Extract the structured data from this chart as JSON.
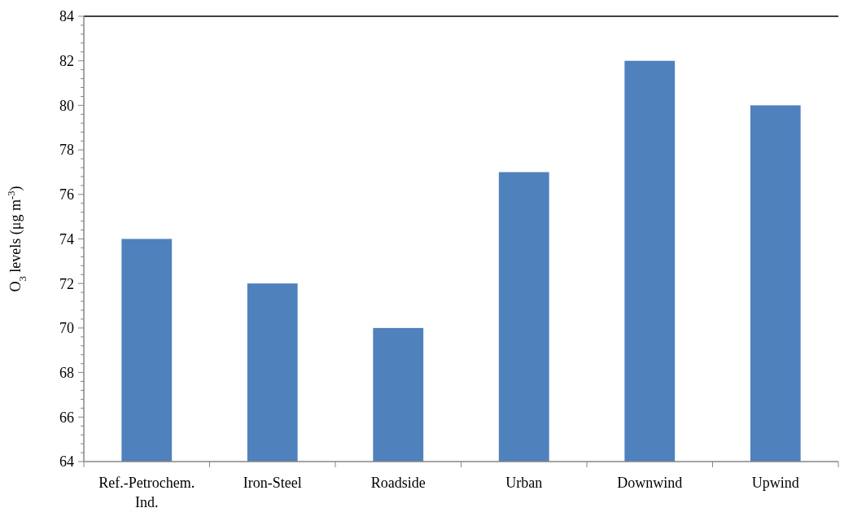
{
  "chart_data": {
    "type": "bar",
    "ylabel": "O$_{3}$ levels  (μg m$^{-3}$)",
    "categories": [
      "Ref.-Petrochem. Ind.",
      "Iron-Steel",
      "Roadside",
      "Urban",
      "Downwind",
      "Upwind"
    ],
    "values": [
      74,
      72,
      70,
      77,
      82,
      80
    ],
    "color": "#4f81bd",
    "ylim": [
      64,
      84
    ],
    "yticks": [
      64,
      {
        "value": 64.4,
        "label": null
      },
      {
        "value": 64.8,
        "label": null
      },
      {
        "value": 65.2,
        "label": null
      },
      {
        "value": 65.6,
        "label": null
      },
      66,
      {
        "value": 66.4,
        "label": null
      },
      {
        "value": 66.8,
        "label": null
      },
      {
        "value": 67.2,
        "label": null
      },
      {
        "value": 67.6,
        "label": null
      },
      68,
      {
        "value": 68.4,
        "label": null
      },
      {
        "value": 68.8,
        "label": null
      },
      {
        "value": 69.2,
        "label": null
      },
      {
        "value": 69.6,
        "label": null
      },
      70,
      {
        "value": 70.4,
        "label": null
      },
      {
        "value": 70.8,
        "label": null
      },
      {
        "value": 71.2,
        "label": null
      },
      {
        "value": 71.6,
        "label": null
      },
      72,
      {
        "value": 72.4,
        "label": null
      },
      {
        "value": 72.8,
        "label": null
      },
      {
        "value": 73.2,
        "label": null
      },
      {
        "value": 73.6,
        "label": null
      },
      74,
      {
        "value": 74.4,
        "label": null
      },
      {
        "value": 74.8,
        "label": null
      },
      {
        "value": 75.2,
        "label": null
      },
      {
        "value": 75.6,
        "label": null
      },
      76,
      {
        "value": 76.4,
        "label": null
      },
      {
        "value": 76.8,
        "label": null
      },
      {
        "value": 77.2,
        "label": null
      },
      {
        "value": 77.6,
        "label": null
      },
      78,
      {
        "value": 78.4,
        "label": null
      },
      {
        "value": 78.8,
        "label": null
      },
      {
        "value": 79.2,
        "label": null
      },
      {
        "value": 79.6,
        "label": null
      },
      80,
      {
        "value": 80.4,
        "label": null
      },
      {
        "value": 80.8,
        "label": null
      },
      {
        "value": 81.2,
        "label": null
      },
      {
        "value": 81.6,
        "label": null
      },
      82,
      {
        "value": 82.4,
        "label": null
      },
      {
        "value": 82.8,
        "label": null
      },
      {
        "value": 83.2,
        "label": null
      },
      {
        "value": 83.6,
        "label": null
      },
      84
    ],
    "grid": false
  }
}
